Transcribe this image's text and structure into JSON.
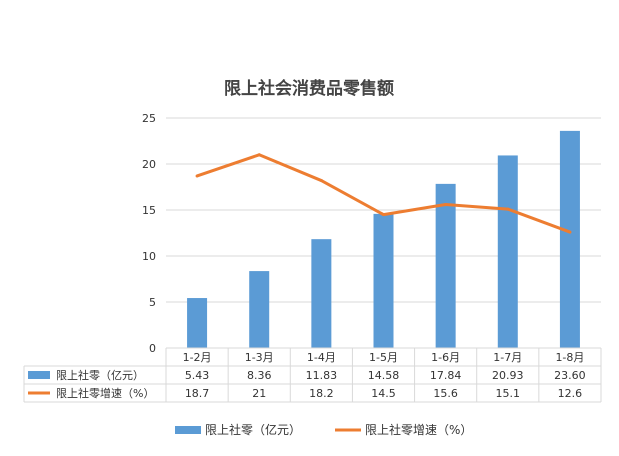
{
  "chart_data": {
    "type": "bar",
    "title": "限上社会消费品零售额",
    "categories": [
      "1-2月",
      "1-3月",
      "1-4月",
      "1-5月",
      "1-6月",
      "1-7月",
      "1-8月"
    ],
    "ylim": [
      0,
      25
    ],
    "yticks": [
      0,
      5,
      10,
      15,
      20,
      25
    ],
    "grid": true,
    "legend_position": "bottom",
    "series": [
      {
        "name": "限上社零（亿元）",
        "type": "bar",
        "color": "#5b9bd5",
        "values": [
          5.43,
          8.36,
          11.83,
          14.58,
          17.84,
          20.93,
          23.6
        ],
        "labels": [
          "5.43",
          "8.36",
          "11.83",
          "14.58",
          "17.84",
          "20.93",
          "23.60"
        ]
      },
      {
        "name": "限上社零增速（%）",
        "type": "line",
        "color": "#ed7d31",
        "values": [
          18.7,
          21,
          18.2,
          14.5,
          15.6,
          15.1,
          12.6
        ],
        "labels": [
          "18.7",
          "21",
          "18.2",
          "14.5",
          "15.6",
          "15.1",
          "12.6"
        ]
      }
    ]
  }
}
